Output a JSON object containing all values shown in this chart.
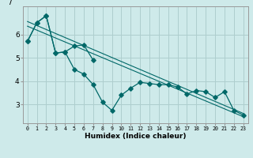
{
  "xlabel": "Humidex (Indice chaleur)",
  "ylabel": "/",
  "bg_color": "#ceeaea",
  "grid_color": "#aecece",
  "line_color": "#006868",
  "x": [
    0,
    1,
    2,
    3,
    4,
    5,
    6,
    7,
    8,
    9,
    10,
    11,
    12,
    13,
    14,
    15,
    16,
    17,
    18,
    19,
    20,
    21,
    22,
    23
  ],
  "line_main": [
    5.7,
    6.5,
    6.8,
    5.2,
    5.25,
    4.5,
    4.3,
    3.85,
    3.1,
    2.75,
    3.4,
    3.7,
    3.95,
    3.9,
    3.85,
    3.85,
    3.75,
    3.45,
    3.6,
    3.55,
    3.3,
    3.55,
    2.75,
    2.55
  ],
  "line_partial_x": [
    0,
    1,
    2,
    3,
    4,
    5,
    6,
    7
  ],
  "line_partial": [
    5.7,
    6.5,
    6.8,
    5.2,
    5.25,
    5.5,
    5.55,
    4.9
  ],
  "trend1_x": [
    0,
    23
  ],
  "trend1_y": [
    6.55,
    2.62
  ],
  "trend2_x": [
    0,
    23
  ],
  "trend2_y": [
    6.35,
    2.48
  ],
  "ylim": [
    2.2,
    7.2
  ],
  "xlim": [
    -0.5,
    23.5
  ],
  "yticks": [
    3,
    4,
    5,
    6
  ],
  "xticks": [
    0,
    1,
    2,
    3,
    4,
    5,
    6,
    7,
    8,
    9,
    10,
    11,
    12,
    13,
    14,
    15,
    16,
    17,
    18,
    19,
    20,
    21,
    22,
    23
  ]
}
